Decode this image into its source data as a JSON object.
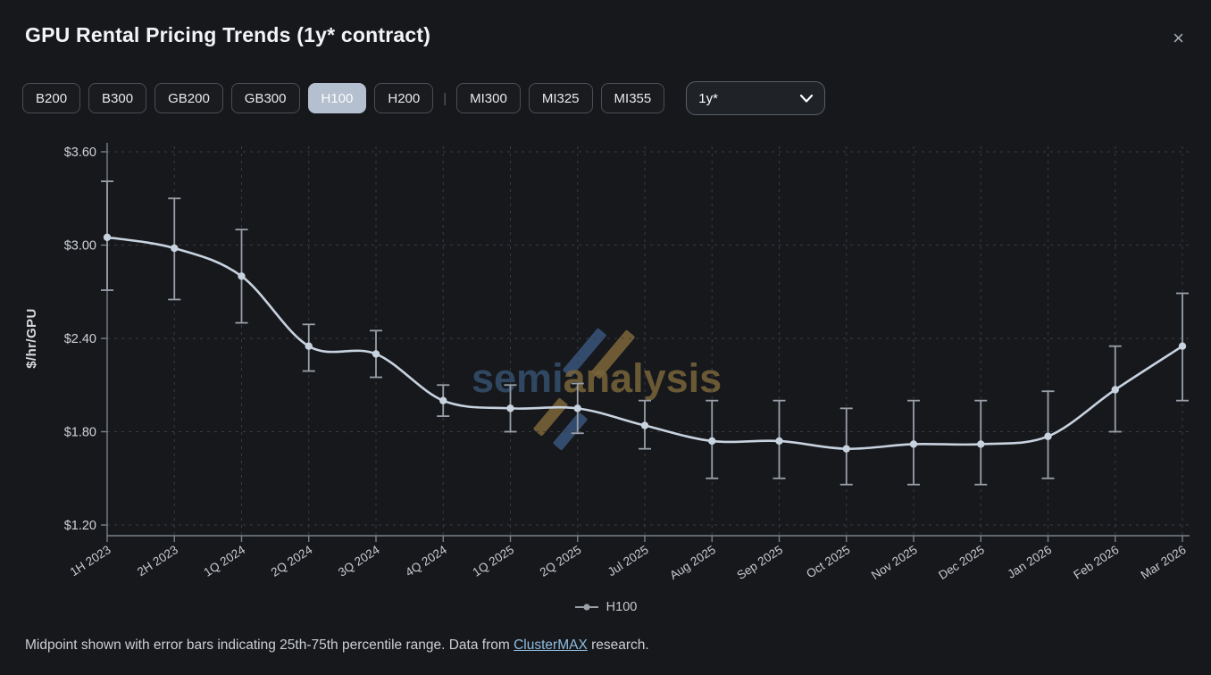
{
  "header": {
    "title": "GPU Rental Pricing Trends (1y* contract)",
    "close_icon": "×"
  },
  "filters": {
    "nvidia_buttons": [
      {
        "label": "B200",
        "selected": false
      },
      {
        "label": "B300",
        "selected": false
      },
      {
        "label": "GB200",
        "selected": false
      },
      {
        "label": "GB300",
        "selected": false
      },
      {
        "label": "H100",
        "selected": true
      },
      {
        "label": "H200",
        "selected": false
      }
    ],
    "separator": "|",
    "amd_buttons": [
      {
        "label": "MI300",
        "selected": false
      },
      {
        "label": "MI325",
        "selected": false
      },
      {
        "label": "MI355",
        "selected": false
      }
    ],
    "contract_select": {
      "value": "1y*"
    }
  },
  "chart_data": {
    "type": "line",
    "title": "GPU Rental Pricing Trends (1y* contract)",
    "xlabel": "",
    "ylabel": "$/hr/GPU",
    "categories": [
      "1H 2023",
      "2H 2023",
      "1Q 2024",
      "2Q 2024",
      "3Q 2024",
      "4Q 2024",
      "1Q 2025",
      "2Q 2025",
      "Jul 2025",
      "Aug 2025",
      "Sep 2025",
      "Oct 2025",
      "Nov 2025",
      "Dec 2025",
      "Jan 2026",
      "Feb 2026",
      "Mar 2026"
    ],
    "series": [
      {
        "name": "H100",
        "values": [
          3.05,
          2.98,
          2.8,
          2.35,
          2.3,
          2.0,
          1.95,
          1.95,
          1.84,
          1.74,
          1.74,
          1.69,
          1.72,
          1.72,
          1.77,
          2.07,
          2.35
        ],
        "p25": [
          2.71,
          2.65,
          2.5,
          2.19,
          2.15,
          1.9,
          1.8,
          1.79,
          1.69,
          1.5,
          1.5,
          1.46,
          1.46,
          1.46,
          1.5,
          1.8,
          2.0
        ],
        "p75": [
          3.41,
          3.3,
          3.1,
          2.49,
          2.45,
          2.1,
          2.1,
          2.11,
          2.0,
          2.0,
          2.0,
          1.95,
          2.0,
          2.0,
          2.06,
          2.35,
          2.69
        ]
      }
    ],
    "yticks": [
      1.2,
      1.8,
      2.4,
      3.0,
      3.6
    ],
    "ytick_labels": [
      "$1.20",
      "$1.80",
      "$2.40",
      "$3.00",
      "$3.60"
    ],
    "ylim": [
      1.1,
      3.67
    ],
    "grid": true,
    "legend_position": "bottom-center",
    "error_bars": "25th-75th percentile"
  },
  "legend": {
    "label": "H100"
  },
  "watermark": {
    "part1": "semi",
    "part2": "analysis"
  },
  "footer": {
    "text_before_link": "Midpoint shown with error bars indicating 25th-75th percentile range. Data from ",
    "link": "ClusterMAX",
    "text_after_link": " research."
  },
  "colors": {
    "background": "#17181c",
    "line": "#c8d3e0",
    "error_bar": "#99a0a9",
    "selected_chip_bg": "#b4c0cf",
    "link": "#8fbcdd",
    "watermark_blue": "#35506e",
    "watermark_gold": "#79653a"
  }
}
